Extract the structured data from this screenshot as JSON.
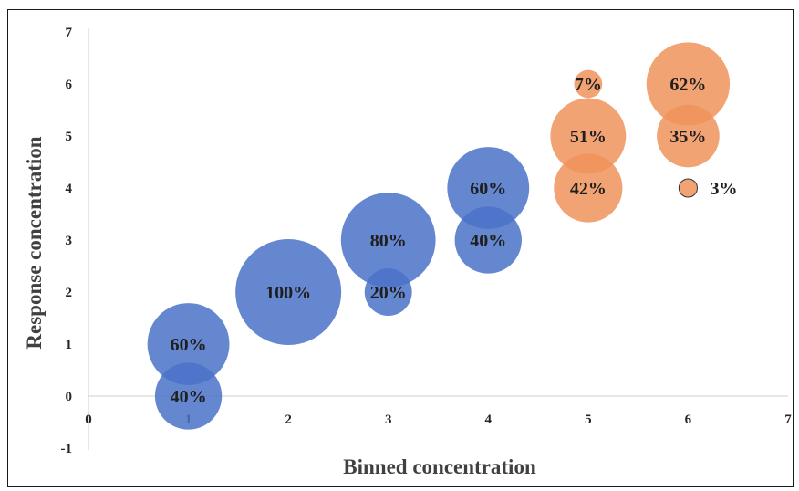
{
  "chart_data": {
    "type": "bubble",
    "title": "",
    "xlabel": "Binned concentration",
    "ylabel": "Response concentration",
    "xlim": [
      0,
      7
    ],
    "ylim": [
      -1,
      7
    ],
    "x_ticks": [
      "0",
      "1",
      "2",
      "3",
      "4",
      "5",
      "6",
      "7"
    ],
    "y_ticks": [
      "-1",
      "0",
      "1",
      "2",
      "3",
      "4",
      "5",
      "6",
      "7"
    ],
    "grid": false,
    "legend": "none",
    "series": [
      {
        "color": "#4a72c8",
        "points": [
          {
            "x": 1,
            "y": 0,
            "size": 40,
            "label": "40%"
          },
          {
            "x": 1,
            "y": 1,
            "size": 60,
            "label": "60%"
          },
          {
            "x": 2,
            "y": 2,
            "size": 100,
            "label": "100%"
          },
          {
            "x": 3,
            "y": 2,
            "size": 20,
            "label": "20%"
          },
          {
            "x": 3,
            "y": 3,
            "size": 80,
            "label": "80%"
          },
          {
            "x": 4,
            "y": 3,
            "size": 40,
            "label": "40%"
          },
          {
            "x": 4,
            "y": 4,
            "size": 60,
            "label": "60%"
          }
        ]
      },
      {
        "color": "#f0935a",
        "points": [
          {
            "x": 5,
            "y": 4,
            "size": 42,
            "label": "42%"
          },
          {
            "x": 5,
            "y": 5,
            "size": 51,
            "label": "51%"
          },
          {
            "x": 5,
            "y": 6,
            "size": 7,
            "label": "7%"
          },
          {
            "x": 6,
            "y": 4,
            "size": 3,
            "label": "3%"
          },
          {
            "x": 6,
            "y": 5,
            "size": 35,
            "label": "35%"
          },
          {
            "x": 6,
            "y": 6,
            "size": 62,
            "label": "62%"
          }
        ]
      }
    ]
  }
}
